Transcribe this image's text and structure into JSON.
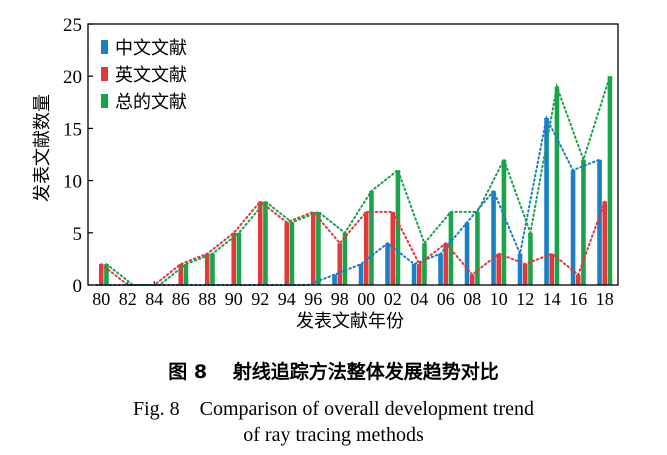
{
  "chart_data": {
    "type": "bar",
    "xlabel": "发表文献年份",
    "ylabel": "发表文献数量",
    "ylim": [
      0,
      25
    ],
    "yticks": [
      0,
      5,
      10,
      15,
      20,
      25
    ],
    "grid": false,
    "legend_position": "top-left",
    "trend_lines": "dotted",
    "categories": [
      "80",
      "82",
      "84",
      "86",
      "88",
      "90",
      "92",
      "94",
      "96",
      "98",
      "00",
      "02",
      "04",
      "06",
      "08",
      "10",
      "12",
      "14",
      "16",
      "18"
    ],
    "series": [
      {
        "name": "中文文献",
        "color": "#1a7fc4",
        "values": [
          0,
          0,
          0,
          0,
          0,
          0,
          0,
          0,
          0,
          1,
          2,
          4,
          2,
          3,
          6,
          9,
          3,
          16,
          11,
          12
        ]
      },
      {
        "name": "英文文献",
        "color": "#e03a3c",
        "values": [
          2,
          0,
          0,
          2,
          3,
          5,
          8,
          6,
          7,
          4,
          7,
          7,
          2,
          4,
          1,
          3,
          2,
          3,
          1,
          8
        ]
      },
      {
        "name": "总的文献",
        "color": "#1aa34a",
        "values": [
          2,
          0,
          0,
          2,
          3,
          5,
          8,
          6,
          7,
          5,
          9,
          11,
          4,
          7,
          7,
          12,
          5,
          19,
          12,
          20
        ]
      }
    ]
  },
  "caption": {
    "zh": "图 8　 射线追踪方法整体发展趋势对比",
    "en_line1": "Fig. 8　Comparison of overall development trend",
    "en_line2": "of ray tracing methods"
  }
}
